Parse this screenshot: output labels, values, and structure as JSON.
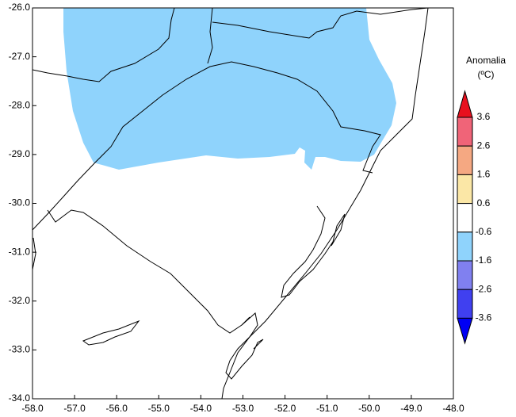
{
  "map": {
    "xlim": [
      -58,
      -48
    ],
    "ylim": [
      -34,
      -26
    ],
    "xticks": [
      {
        "value": -58,
        "label": "-58.0"
      },
      {
        "value": -57,
        "label": "-57.0"
      },
      {
        "value": -56,
        "label": "-56.0"
      },
      {
        "value": -55,
        "label": "-55.0"
      },
      {
        "value": -54,
        "label": "-54.0"
      },
      {
        "value": -53,
        "label": "-53.0"
      },
      {
        "value": -52,
        "label": "-52.0"
      },
      {
        "value": -51,
        "label": "-51.0"
      },
      {
        "value": -50,
        "label": "-50.0"
      },
      {
        "value": -49,
        "label": "-49.0"
      },
      {
        "value": -48,
        "label": "-48.0"
      }
    ],
    "yticks": [
      {
        "value": -26,
        "label": "-26.0"
      },
      {
        "value": -27,
        "label": "-27.0"
      },
      {
        "value": -28,
        "label": "-28.0"
      },
      {
        "value": -29,
        "label": "-29.0"
      },
      {
        "value": -30,
        "label": "-30.0"
      },
      {
        "value": -31,
        "label": "-31.0"
      },
      {
        "value": -32,
        "label": "-32.0"
      },
      {
        "value": -33,
        "label": "-33.0"
      },
      {
        "value": -34,
        "label": "-34.0"
      }
    ],
    "colorbar": {
      "title": [
        "Anomalia",
        "(ºC)"
      ],
      "levels": [
        3.6,
        2.6,
        1.6,
        0.6,
        -0.6,
        -1.6,
        -2.6,
        -3.6
      ],
      "colors": [
        "#e8101e",
        "#f06478",
        "#f5a882",
        "#fbe7a6",
        "#ffffff",
        "#8fd3fc",
        "#8080f0",
        "#4040f0",
        "#0000f5"
      ]
    }
  }
}
